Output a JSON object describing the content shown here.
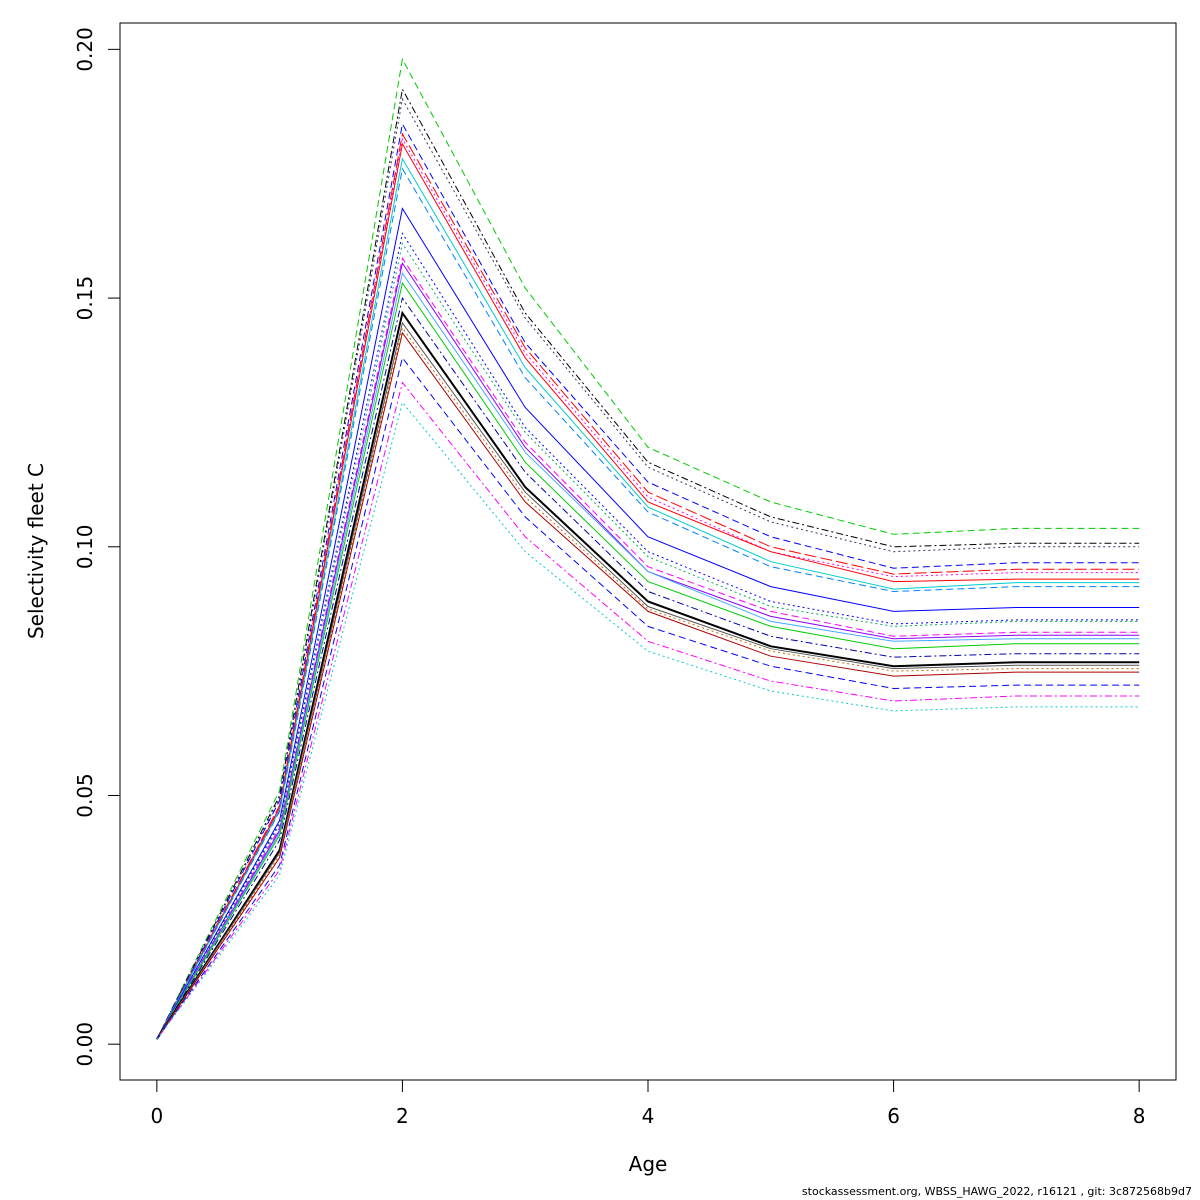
{
  "chart_data": {
    "type": "line",
    "title": "",
    "xlabel": "Age",
    "ylabel": "Selectivity fleet C",
    "xlim": [
      -0.3,
      8.3
    ],
    "ylim": [
      -0.0072,
      0.2053
    ],
    "xticks": [
      0,
      2,
      4,
      6,
      8
    ],
    "xtick_labels": [
      "0",
      "2",
      "4",
      "6",
      "8"
    ],
    "yticks": [
      0,
      0.05,
      0.1,
      0.15,
      0.2
    ],
    "ytick_labels": [
      "0.00",
      "0.05",
      "0.10",
      "0.15",
      "0.20"
    ],
    "grid": false,
    "legend": "none",
    "x": [
      0,
      1,
      2,
      3,
      4,
      5,
      6,
      7,
      8
    ],
    "series": [
      {
        "color": "#00cc00",
        "dash": "dashed",
        "values": [
          0.001,
          0.051,
          0.198,
          0.152,
          0.12,
          0.109,
          0.1025,
          0.1037,
          0.1037
        ]
      },
      {
        "color": "#000000",
        "dash": "dotdash",
        "values": [
          0.001,
          0.05,
          0.192,
          0.147,
          0.117,
          0.106,
          0.1,
          0.1007,
          0.1007
        ]
      },
      {
        "color": "#333366",
        "dash": "dotted",
        "values": [
          0.001,
          0.0495,
          0.19,
          0.146,
          0.116,
          0.105,
          0.099,
          0.1,
          0.1
        ]
      },
      {
        "color": "#0000ff",
        "dash": "dashed",
        "values": [
          0.001,
          0.049,
          0.185,
          0.141,
          0.113,
          0.102,
          0.0957,
          0.0968,
          0.0968
        ]
      },
      {
        "color": "#ff0000",
        "dash": "longdash",
        "values": [
          0.001,
          0.048,
          0.183,
          0.14,
          0.111,
          0.1,
          0.0945,
          0.0955,
          0.0955
        ]
      },
      {
        "color": "#ff00ff",
        "dash": "dotted",
        "values": [
          0.001,
          0.0478,
          0.182,
          0.139,
          0.11,
          0.099,
          0.094,
          0.0948,
          0.0948
        ]
      },
      {
        "color": "#ff0000",
        "dash": "solid",
        "values": [
          0.001,
          0.0475,
          0.181,
          0.138,
          0.109,
          0.099,
          0.093,
          0.0935,
          0.0935
        ]
      },
      {
        "color": "#00cccc",
        "dash": "solid",
        "values": [
          0.001,
          0.047,
          0.178,
          0.136,
          0.108,
          0.097,
          0.0915,
          0.0928,
          0.0928
        ]
      },
      {
        "color": "#0080ff",
        "dash": "dashed",
        "values": [
          0.001,
          0.0468,
          0.176,
          0.134,
          0.107,
          0.096,
          0.091,
          0.092,
          0.092
        ]
      },
      {
        "color": "#0000ff",
        "dash": "solid",
        "values": [
          0.001,
          0.045,
          0.168,
          0.128,
          0.102,
          0.092,
          0.087,
          0.0878,
          0.0878
        ]
      },
      {
        "color": "#0000ff",
        "dash": "dotted",
        "values": [
          0.001,
          0.0445,
          0.163,
          0.124,
          0.099,
          0.089,
          0.0845,
          0.0853,
          0.0853
        ]
      },
      {
        "color": "#00aa55",
        "dash": "dotted",
        "values": [
          0.001,
          0.044,
          0.161,
          0.123,
          0.098,
          0.088,
          0.084,
          0.085,
          0.085
        ]
      },
      {
        "color": "#ff00ff",
        "dash": "dashed",
        "values": [
          0.001,
          0.0435,
          0.158,
          0.121,
          0.096,
          0.087,
          0.082,
          0.0828,
          0.0828
        ]
      },
      {
        "color": "#8800ff",
        "dash": "solid",
        "values": [
          0.001,
          0.043,
          0.157,
          0.12,
          0.095,
          0.086,
          0.0815,
          0.0822,
          0.0822
        ]
      },
      {
        "color": "#44aaff",
        "dash": "solid",
        "values": [
          0.001,
          0.0425,
          0.155,
          0.119,
          0.095,
          0.085,
          0.081,
          0.0815,
          0.0815
        ]
      },
      {
        "color": "#00cc00",
        "dash": "solid",
        "values": [
          0.001,
          0.042,
          0.153,
          0.117,
          0.093,
          0.084,
          0.0795,
          0.0805,
          0.0805
        ]
      },
      {
        "color": "#0000aa",
        "dash": "dotdash",
        "values": [
          0.001,
          0.041,
          0.15,
          0.115,
          0.091,
          0.082,
          0.0778,
          0.0785,
          0.0785
        ]
      },
      {
        "color": "#000000",
        "dash": "solid",
        "values": [
          0.001,
          0.039,
          0.147,
          0.112,
          0.089,
          0.08,
          0.076,
          0.0768,
          0.0768
        ]
      },
      {
        "color": "#555555",
        "dash": "solid",
        "values": [
          0.001,
          0.0385,
          0.145,
          0.111,
          0.088,
          0.0795,
          0.0755,
          0.0762,
          0.0762
        ]
      },
      {
        "color": "#cc6600",
        "dash": "dotted",
        "values": [
          0.001,
          0.038,
          0.144,
          0.11,
          0.0875,
          0.079,
          0.075,
          0.0755,
          0.0755
        ]
      },
      {
        "color": "#aa0000",
        "dash": "solid",
        "values": [
          0.001,
          0.0375,
          0.143,
          0.109,
          0.087,
          0.078,
          0.074,
          0.0748,
          0.0748
        ]
      },
      {
        "color": "#0000ff",
        "dash": "dashed",
        "values": [
          0.001,
          0.036,
          0.138,
          0.106,
          0.084,
          0.076,
          0.0715,
          0.0722,
          0.0722
        ]
      },
      {
        "color": "#ff00ff",
        "dash": "dotdash",
        "values": [
          0.001,
          0.035,
          0.133,
          0.102,
          0.081,
          0.073,
          0.069,
          0.07,
          0.07
        ]
      },
      {
        "color": "#00cccc",
        "dash": "dotted",
        "values": [
          0.001,
          0.034,
          0.129,
          0.099,
          0.079,
          0.071,
          0.067,
          0.0678,
          0.0678
        ]
      }
    ]
  },
  "footer": "stockassessment.org, WBSS_HAWG_2022, r16121 , git: 3c872568b9d7"
}
